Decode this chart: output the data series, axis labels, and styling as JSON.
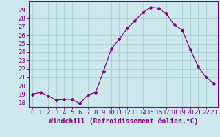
{
  "x": [
    0,
    1,
    2,
    3,
    4,
    5,
    6,
    7,
    8,
    9,
    10,
    11,
    12,
    13,
    14,
    15,
    16,
    17,
    18,
    19,
    20,
    21,
    22,
    23
  ],
  "y": [
    19,
    19.2,
    18.8,
    18.3,
    18.4,
    18.4,
    17.9,
    18.9,
    19.2,
    21.7,
    24.4,
    25.5,
    26.8,
    27.7,
    28.7,
    29.3,
    29.2,
    28.5,
    27.2,
    26.6,
    24.3,
    22.3,
    21.0,
    20.3
  ],
  "line_color": "#800080",
  "marker": "D",
  "marker_size": 2,
  "bg_color": "#cde8ec",
  "grid_color": "#aacccc",
  "xlabel": "Windchill (Refroidissement éolien,°C)",
  "xlim": [
    -0.5,
    23.5
  ],
  "ylim": [
    17.5,
    30.0
  ],
  "yticks": [
    18,
    19,
    20,
    21,
    22,
    23,
    24,
    25,
    26,
    27,
    28,
    29
  ],
  "xtick_labels": [
    "0",
    "1",
    "2",
    "3",
    "4",
    "5",
    "6",
    "7",
    "8",
    "9",
    "10",
    "11",
    "12",
    "13",
    "14",
    "15",
    "16",
    "17",
    "18",
    "19",
    "20",
    "21",
    "22",
    "23"
  ],
  "xlabel_fontsize": 7,
  "tick_fontsize": 6.5,
  "label_color": "#800080",
  "spine_color": "#800080"
}
